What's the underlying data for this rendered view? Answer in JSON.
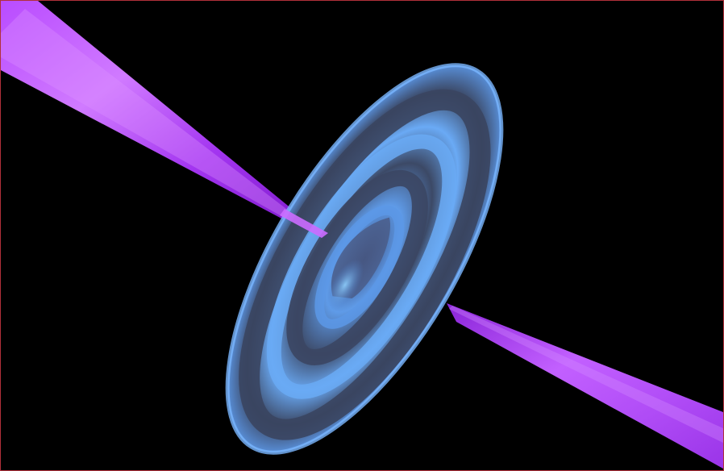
{
  "scene": {
    "description_icon": "accretion-disk-with-jets-icon",
    "background_color": "#000000",
    "border_color": "#b0303a",
    "jet_color_light": "#c45cff",
    "jet_color_dark": "#8a1fd6",
    "disk_color_light": "#6aa8f2",
    "disk_color_mid": "#4c86d6",
    "disk_color_dark": "#3a4660"
  }
}
